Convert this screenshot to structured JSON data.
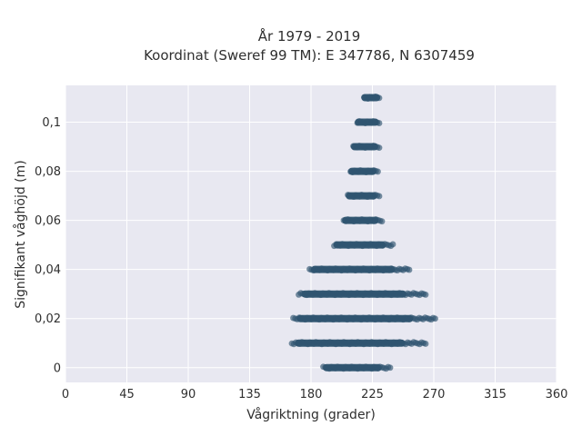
{
  "chart_data": {
    "type": "scatter",
    "title_line1": "År 1979 - 2019",
    "title_line2": "Koordinat (Sweref 99 TM): E 347786, N 6307459",
    "xlabel": "Vågriktning (grader)",
    "ylabel": "Signifikant våghöjd (m)",
    "xlim": [
      0,
      360
    ],
    "ylim": [
      -0.006,
      0.115
    ],
    "x_ticks": [
      0,
      45,
      90,
      135,
      180,
      225,
      270,
      315,
      360
    ],
    "x_tick_labels": [
      "0",
      "45",
      "90",
      "135",
      "180",
      "225",
      "270",
      "315",
      "360"
    ],
    "y_ticks": [
      0,
      0.02,
      0.04,
      0.06,
      0.08,
      0.1
    ],
    "y_tick_labels": [
      "0",
      "0,02",
      "0,04",
      "0,06",
      "0,08",
      "0,1"
    ],
    "grid": true,
    "background_color": "#e8e8f1",
    "grid_color": "#ffffff",
    "marker_color": "#2f5570",
    "bands": [
      {
        "height": 0.0,
        "dir_min": 189,
        "dir_max": 238
      },
      {
        "height": 0.01,
        "dir_min": 166,
        "dir_max": 264
      },
      {
        "height": 0.02,
        "dir_min": 167,
        "dir_max": 271
      },
      {
        "height": 0.03,
        "dir_min": 171,
        "dir_max": 264
      },
      {
        "height": 0.04,
        "dir_min": 179,
        "dir_max": 252
      },
      {
        "height": 0.05,
        "dir_min": 197,
        "dir_max": 240
      },
      {
        "height": 0.06,
        "dir_min": 204,
        "dir_max": 232
      },
      {
        "height": 0.07,
        "dir_min": 207,
        "dir_max": 230
      },
      {
        "height": 0.08,
        "dir_min": 209,
        "dir_max": 229
      },
      {
        "height": 0.09,
        "dir_min": 211,
        "dir_max": 230
      },
      {
        "height": 0.1,
        "dir_min": 214,
        "dir_max": 230
      },
      {
        "height": 0.11,
        "dir_min": 219,
        "dir_max": 230
      }
    ]
  }
}
